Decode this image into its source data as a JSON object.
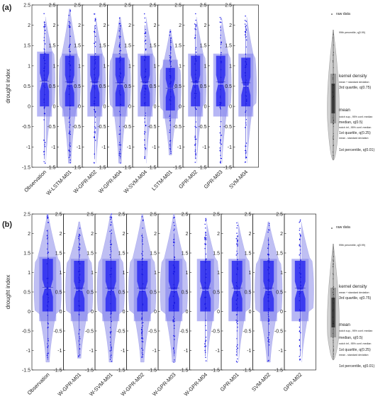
{
  "chart_data": [
    {
      "type": "violin",
      "panel_label": "(a)",
      "ylabel": "drought index",
      "ylim": [
        -1.5,
        2.5
      ],
      "yticks": [
        -1.5,
        -1,
        -0.5,
        0,
        0.5,
        1,
        1.5,
        2,
        2.5
      ],
      "ytick_labels": [
        "-1.5",
        "-1",
        "-0.5",
        "0",
        "0.5",
        "1",
        "1.5",
        "2",
        "2.5"
      ],
      "grid": false,
      "legend_position": "right",
      "categories": [
        "Observation",
        "W-LSTM-M01",
        "W-GPR-M02",
        "W-GPR-M04",
        "W-SVM-M04",
        "LSTM-M01",
        "GPR-M02",
        "GPR-M03",
        "SVM-M04"
      ],
      "series": [
        {
          "p01": -1.3,
          "q1": 0.0,
          "median": 0.6,
          "q3": 1.3,
          "p99": 2.1,
          "mean": 0.62,
          "sd_low": -0.25,
          "sd_high": 1.35,
          "raw_min": -1.4,
          "raw_max": 2.3
        },
        {
          "p01": -1.25,
          "q1": 0.0,
          "median": 0.55,
          "q3": 1.25,
          "p99": 2.05,
          "mean": 0.6,
          "sd_low": -0.25,
          "sd_high": 1.3,
          "raw_min": -1.4,
          "raw_max": 2.4
        },
        {
          "p01": -1.3,
          "q1": 0.0,
          "median": 0.55,
          "q3": 1.25,
          "p99": 2.0,
          "mean": 0.6,
          "sd_low": -0.25,
          "sd_high": 1.3,
          "raw_min": -1.4,
          "raw_max": 2.3
        },
        {
          "p01": -1.3,
          "q1": 0.0,
          "median": 0.55,
          "q3": 1.2,
          "p99": 2.0,
          "mean": 0.58,
          "sd_low": -0.25,
          "sd_high": 1.3,
          "raw_min": -1.4,
          "raw_max": 2.2
        },
        {
          "p01": -1.3,
          "q1": 0.0,
          "median": 0.55,
          "q3": 1.25,
          "p99": 2.0,
          "mean": 0.6,
          "sd_low": -0.25,
          "sd_high": 1.3,
          "raw_min": -1.4,
          "raw_max": 2.3
        },
        {
          "p01": -1.1,
          "q1": -0.1,
          "median": 0.45,
          "q3": 0.95,
          "p99": 1.7,
          "mean": 0.45,
          "sd_low": -0.3,
          "sd_high": 1.15,
          "raw_min": -1.2,
          "raw_max": 1.9
        },
        {
          "p01": -1.3,
          "q1": 0.0,
          "median": 0.55,
          "q3": 1.25,
          "p99": 2.0,
          "mean": 0.6,
          "sd_low": -0.25,
          "sd_high": 1.3,
          "raw_min": -1.4,
          "raw_max": 2.3
        },
        {
          "p01": -1.3,
          "q1": 0.0,
          "median": 0.55,
          "q3": 1.25,
          "p99": 2.0,
          "mean": 0.6,
          "sd_low": -0.25,
          "sd_high": 1.3,
          "raw_min": -1.4,
          "raw_max": 2.3
        },
        {
          "p01": -1.3,
          "q1": 0.0,
          "median": 0.5,
          "q3": 1.2,
          "p99": 2.0,
          "mean": 0.58,
          "sd_low": -0.25,
          "sd_high": 1.3,
          "raw_min": -1.4,
          "raw_max": 2.3
        }
      ],
      "legend_items": [
        {
          "key": "raw",
          "text": "raw data"
        },
        {
          "key": "p99",
          "text": "99th percentile, q(0.99)"
        },
        {
          "key": "kd",
          "text": "kernel density"
        },
        {
          "key": "msd_high",
          "text": "mean + standard deviation"
        },
        {
          "key": "q3",
          "text": "3rd quartile, q(0.75)"
        },
        {
          "key": "mean",
          "text": "mean"
        },
        {
          "key": "notch_sup",
          "text": "notch sup., 95% conf. median"
        },
        {
          "key": "median",
          "text": "median, q(0.5)"
        },
        {
          "key": "notch_inf",
          "text": "notch inf., 95% conf. median"
        },
        {
          "key": "q1",
          "text": "1st quartile, q(0.25)"
        },
        {
          "key": "msd_low",
          "text": "mean - standard deviation"
        },
        {
          "key": "p01",
          "text": "1st percentile, q(0.01)"
        }
      ]
    },
    {
      "type": "violin",
      "panel_label": "(b)",
      "ylabel": "drought index",
      "ylim": [
        -1.5,
        2.5
      ],
      "yticks": [
        -1.5,
        -1,
        -0.5,
        0,
        0.5,
        1,
        1.5,
        2,
        2.5
      ],
      "ytick_labels": [
        "-1.5",
        "-1",
        "-0.5",
        "0",
        "0.5",
        "1",
        "1.5",
        "2",
        "2.5"
      ],
      "grid": false,
      "legend_position": "right",
      "categories": [
        "Observation",
        "W-GPR-M01",
        "W-SVM-M01",
        "W-GPR-M02",
        "W-GPR-M03",
        "W-GPR-M04",
        "GPR-M01",
        "SVM-M02",
        "GPR-M02"
      ],
      "series": [
        {
          "p01": -1.25,
          "q1": 0.0,
          "median": 0.6,
          "q3": 1.35,
          "p99": 2.1,
          "mean": 0.62,
          "sd_low": -0.25,
          "sd_high": 1.4,
          "raw_min": -1.3,
          "raw_max": 2.5
        },
        {
          "p01": -1.1,
          "q1": 0.0,
          "median": 0.55,
          "q3": 1.3,
          "p99": 1.95,
          "mean": 0.6,
          "sd_low": -0.25,
          "sd_high": 1.35,
          "raw_min": -1.2,
          "raw_max": 2.3
        },
        {
          "p01": -1.15,
          "q1": 0.0,
          "median": 0.55,
          "q3": 1.3,
          "p99": 2.0,
          "mean": 0.6,
          "sd_low": -0.25,
          "sd_high": 1.35,
          "raw_min": -1.3,
          "raw_max": 2.5
        },
        {
          "p01": -1.15,
          "q1": 0.0,
          "median": 0.55,
          "q3": 1.3,
          "p99": 2.0,
          "mean": 0.6,
          "sd_low": -0.25,
          "sd_high": 1.35,
          "raw_min": -1.3,
          "raw_max": 2.5
        },
        {
          "p01": -1.15,
          "q1": 0.0,
          "median": 0.55,
          "q3": 1.3,
          "p99": 2.0,
          "mean": 0.6,
          "sd_low": -0.25,
          "sd_high": 1.35,
          "raw_min": -1.3,
          "raw_max": 2.5
        },
        {
          "p01": -1.15,
          "q1": 0.0,
          "median": 0.55,
          "q3": 1.3,
          "p99": 2.0,
          "mean": 0.6,
          "sd_low": -0.25,
          "sd_high": 1.35,
          "raw_min": -1.3,
          "raw_max": 2.4
        },
        {
          "p01": -1.15,
          "q1": 0.0,
          "median": 0.55,
          "q3": 1.3,
          "p99": 1.95,
          "mean": 0.6,
          "sd_low": -0.25,
          "sd_high": 1.35,
          "raw_min": -1.3,
          "raw_max": 2.4
        },
        {
          "p01": -1.15,
          "q1": 0.0,
          "median": 0.55,
          "q3": 1.3,
          "p99": 1.9,
          "mean": 0.6,
          "sd_low": -0.25,
          "sd_high": 1.35,
          "raw_min": -1.3,
          "raw_max": 2.3
        },
        {
          "p01": -1.15,
          "q1": 0.0,
          "median": 0.55,
          "q3": 1.3,
          "p99": 2.0,
          "mean": 0.6,
          "sd_low": -0.25,
          "sd_high": 1.35,
          "raw_min": -1.3,
          "raw_max": 2.4
        }
      ],
      "legend_items": [
        {
          "key": "raw",
          "text": "raw data"
        },
        {
          "key": "p99",
          "text": "99th percentile, q(0.99)"
        },
        {
          "key": "kd",
          "text": "kernel density"
        },
        {
          "key": "msd_high",
          "text": "mean + standard deviation"
        },
        {
          "key": "q3",
          "text": "3rd quartile, q(0.75)"
        },
        {
          "key": "mean",
          "text": "mean"
        },
        {
          "key": "notch_sup",
          "text": "notch sup., 95% conf. median"
        },
        {
          "key": "median",
          "text": "median, q(0.5)"
        },
        {
          "key": "notch_inf",
          "text": "notch inf., 95% conf. median"
        },
        {
          "key": "q1",
          "text": "1st quartile, q(0.25)"
        },
        {
          "key": "msd_low",
          "text": "mean - standard deviation"
        },
        {
          "key": "p01",
          "text": "1st percentile, q(0.01)"
        }
      ]
    }
  ],
  "colors": {
    "violin_fill": "#a9a9ef",
    "box_light": "#7c7ced",
    "box_dark": "#2a2af0",
    "raw_points": "#1515e6",
    "median_line": "#e7e7ff",
    "axis": "#222222",
    "legend_gray": "#444444"
  }
}
